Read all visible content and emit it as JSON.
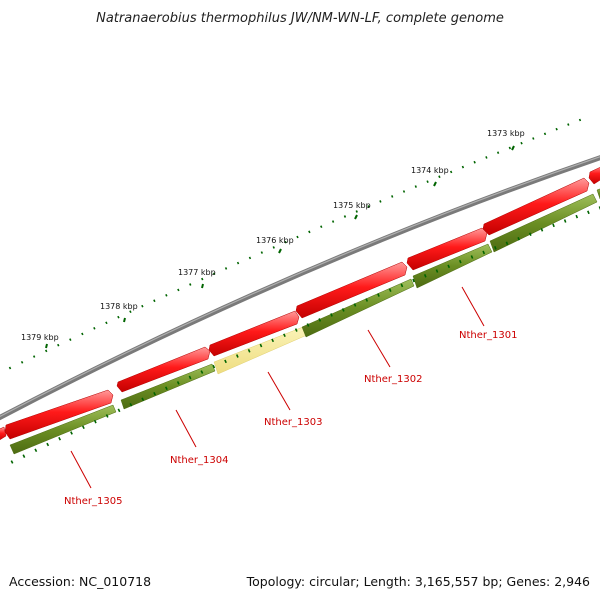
{
  "title": "Natranaerobius thermophilus JW/NM-WN-LF, complete genome",
  "footer": {
    "accession": "Accession: NC_010718",
    "summary": "Topology: circular; Length: 3,165,557 bp; Genes: 2,946"
  },
  "scale": {
    "ticks": [
      {
        "label": "1373 kbp"
      },
      {
        "label": "1374 kbp"
      },
      {
        "label": "1375 kbp"
      },
      {
        "label": "1376 kbp"
      },
      {
        "label": "1377 kbp"
      },
      {
        "label": "1378 kbp"
      },
      {
        "label": "1379 kbp"
      }
    ]
  },
  "genes": [
    {
      "label": "Nther_1301"
    },
    {
      "label": "Nther_1302"
    },
    {
      "label": "Nther_1303"
    },
    {
      "label": "Nther_1304"
    },
    {
      "label": "Nther_1305"
    }
  ],
  "colors": {
    "backbone": "#808080",
    "cds_forward": "#ff0000",
    "cds_track": "#6b8e23",
    "cds_highlight": "#f0e68c",
    "ticks": "#006400",
    "gene_label": "#cc0000"
  }
}
